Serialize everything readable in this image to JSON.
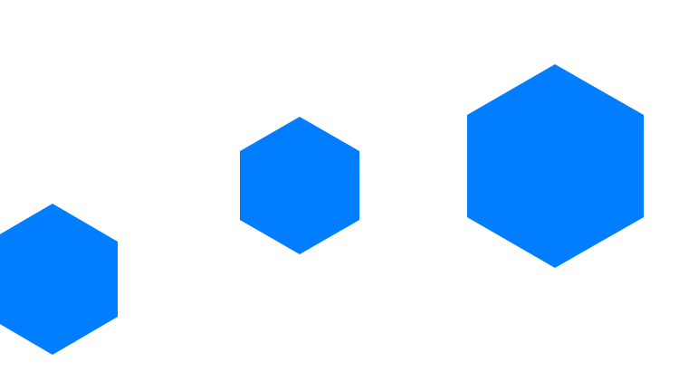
{
  "background_color": "#ffffff",
  "shapes": [
    {
      "kind": "hexagon",
      "color": "#007eff"
    },
    {
      "kind": "hexagon",
      "color": "#007eff"
    },
    {
      "kind": "hexagon",
      "color": "#007eff"
    }
  ]
}
